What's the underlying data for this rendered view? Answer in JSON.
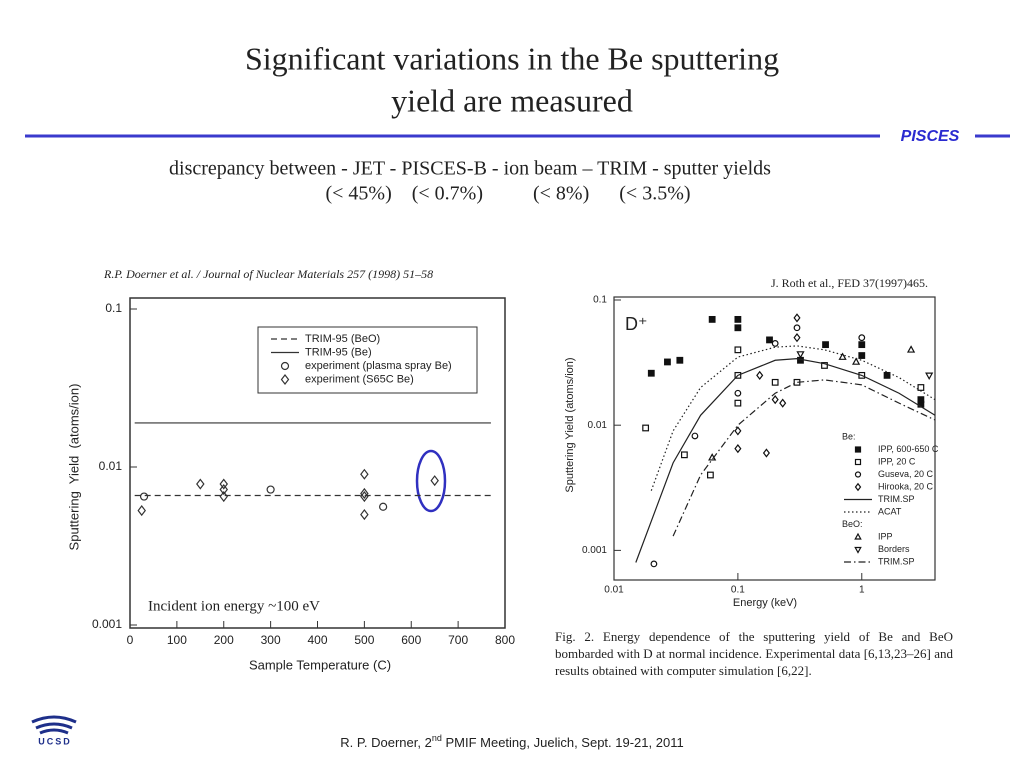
{
  "slide": {
    "title": [
      "Significant variations in the Be sputtering",
      "yield are measured"
    ],
    "brand": "PISCES",
    "subtitle": "discrepancy between - JET  -  PISCES-B   -  ion beam – TRIM - sputter yields",
    "percentages": "(< 45%)    (< 0.7%)          (< 8%)      (< 3.5%)",
    "footer": [
      "R. P. Doerner, 2",
      "nd",
      " PMIF Meeting, Juelich, Sept. 19-21, 2011"
    ],
    "logo": "UCSD"
  },
  "chart_data": [
    {
      "type": "scatter",
      "header": "R.P. Doerner et al. / Journal of Nuclear Materials 257 (1998) 51–58",
      "xlabel": "Sample Temperature (C)",
      "ylabel": "Sputtering  Yield  (atoms/ion)",
      "annotation": "Incident ion energy ~100 eV",
      "xscale": "linear",
      "yscale": "log",
      "xlim": [
        0,
        800
      ],
      "ylim": [
        0.001,
        0.1
      ],
      "xticks": [
        0,
        100,
        200,
        300,
        400,
        500,
        600,
        700,
        800
      ],
      "yticks": [
        0.001,
        0.01,
        0.1
      ],
      "series": [
        {
          "name": "TRIM-95  (BeO)",
          "color": "#333333",
          "line": "dashed",
          "x": [
            10,
            770
          ],
          "values": [
            0.0066,
            0.0066
          ]
        },
        {
          "name": "TRIM-95  (Be)",
          "color": "#333333",
          "line": "solid",
          "x": [
            10,
            770
          ],
          "values": [
            0.019,
            0.019
          ]
        },
        {
          "name": "experiment  (plasma spray Be)",
          "color": "#333333",
          "marker": "circle",
          "x": [
            30,
            300,
            540
          ],
          "values": [
            0.0065,
            0.0072,
            0.0056
          ]
        },
        {
          "name": "experiment  (S65C Be)",
          "color": "#333333",
          "marker": "diamond",
          "x": [
            25,
            150,
            200,
            200,
            200,
            500,
            500,
            500,
            500,
            650
          ],
          "values": [
            0.0053,
            0.0078,
            0.0078,
            0.0072,
            0.0065,
            0.009,
            0.0068,
            0.0065,
            0.005,
            0.0082
          ]
        }
      ]
    },
    {
      "type": "scatter",
      "citation": "J. Roth et al., FED 37(1997)465.",
      "label": "D⁺",
      "xlabel": "Energy (keV)",
      "ylabel": "Sputtering Yield (atoms/ion)",
      "caption": "Fig. 2. Energy dependence of the sputtering yield of Be and BeO bombarded with D at normal incidence. Experimental data [6,13,23–26] and results obtained with computer simulation [6,22].",
      "xscale": "log",
      "yscale": "log",
      "xlim": [
        0.01,
        3.9
      ],
      "ylim": [
        0.00058,
        0.1
      ],
      "xticks": [
        0.01,
        0.1,
        1
      ],
      "yticks": [
        0.001,
        0.01,
        0.1
      ],
      "series_groups": [
        {
          "label": "Be:",
          "series": [
            {
              "name": "IPP, 600-650 C",
              "color": "#111111",
              "marker": "square-filled",
              "x": [
                0.02,
                0.027,
                0.034,
                0.062,
                0.1,
                0.1,
                0.18,
                0.32,
                0.51,
                1,
                1,
                1.6,
                3,
                3
              ],
              "values": [
                0.026,
                0.032,
                0.033,
                0.07,
                0.07,
                0.06,
                0.048,
                0.033,
                0.044,
                0.044,
                0.036,
                0.025,
                0.016,
                0.0147
              ]
            },
            {
              "name": "IPP, 20 C",
              "color": "#111111",
              "marker": "square",
              "x": [
                0.018,
                0.037,
                0.06,
                0.1,
                0.1,
                0.1,
                0.2,
                0.3,
                0.5,
                1,
                3
              ],
              "values": [
                0.0095,
                0.0058,
                0.004,
                0.04,
                0.025,
                0.015,
                0.022,
                0.022,
                0.03,
                0.025,
                0.02
              ]
            },
            {
              "name": "Guseva, 20 C",
              "color": "#111111",
              "marker": "circle",
              "x": [
                0.021,
                0.045,
                0.1,
                0.2,
                0.3,
                1
              ],
              "values": [
                0.00078,
                0.0082,
                0.018,
                0.045,
                0.06,
                0.05
              ]
            },
            {
              "name": "Hirooka, 20 C",
              "color": "#111111",
              "marker": "diamond",
              "x": [
                0.1,
                0.1,
                0.15,
                0.2,
                0.23,
                0.3,
                0.3,
                0.17
              ],
              "values": [
                0.009,
                0.0065,
                0.025,
                0.016,
                0.015,
                0.072,
                0.05,
                0.006
              ]
            },
            {
              "name": "TRIM.SP",
              "color": "#222222",
              "line": "solid",
              "x": [
                0.015,
                0.03,
                0.05,
                0.1,
                0.2,
                0.3,
                0.5,
                1,
                2,
                3.9
              ],
              "values": [
                0.0008,
                0.005,
                0.012,
                0.025,
                0.033,
                0.034,
                0.031,
                0.025,
                0.018,
                0.012
              ]
            },
            {
              "name": "ACAT",
              "color": "#222222",
              "line": "dotted",
              "x": [
                0.02,
                0.03,
                0.05,
                0.1,
                0.2,
                0.3,
                0.5,
                1,
                2,
                3.9
              ],
              "values": [
                0.003,
                0.009,
                0.02,
                0.035,
                0.042,
                0.043,
                0.04,
                0.033,
                0.024,
                0.016
              ]
            }
          ]
        },
        {
          "label": "BeO:",
          "series": [
            {
              "name": "IPP",
              "color": "#111111",
              "marker": "triangle",
              "x": [
                0.062,
                0.7,
                0.9,
                2.5
              ],
              "values": [
                0.0055,
                0.035,
                0.032,
                0.04
              ]
            },
            {
              "name": "Borders",
              "color": "#111111",
              "marker": "triangle-down",
              "x": [
                0.32,
                3.5
              ],
              "values": [
                0.037,
                0.025
              ]
            },
            {
              "name": "TRIM.SP",
              "color": "#222222",
              "line": "dashdot",
              "x": [
                0.03,
                0.05,
                0.1,
                0.2,
                0.3,
                0.5,
                1,
                2,
                3.9
              ],
              "values": [
                0.0013,
                0.004,
                0.01,
                0.018,
                0.022,
                0.023,
                0.021,
                0.015,
                0.011
              ]
            }
          ]
        }
      ]
    }
  ]
}
